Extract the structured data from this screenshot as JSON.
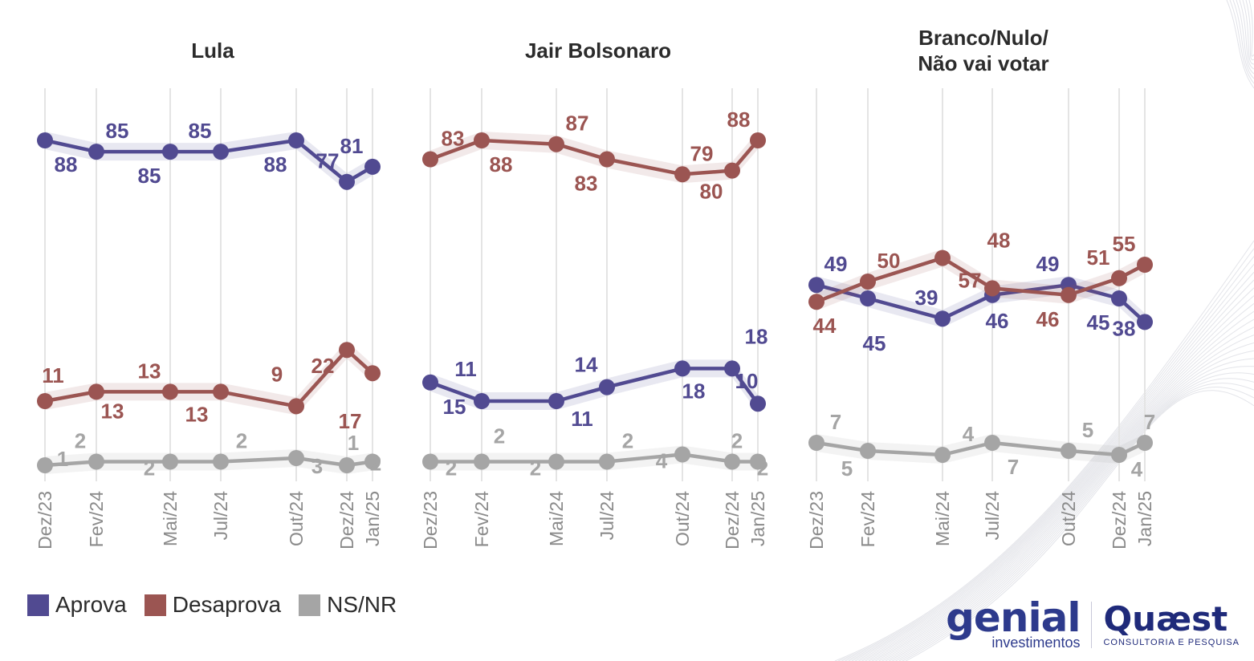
{
  "colors": {
    "aprova": "#514a91",
    "desaprova": "#9b5552",
    "nsnr": "#a5a5a5"
  },
  "legend": [
    {
      "key": "aprova",
      "label": "Aprova"
    },
    {
      "key": "desaprova",
      "label": "Desaprova"
    },
    {
      "key": "nsnr",
      "label": "NS/NR"
    }
  ],
  "logos": {
    "genial": "genial",
    "genial_sub": "investimentos",
    "quaest": "Quæst",
    "quaest_sub": "CONSULTORIA E PESQUISA"
  },
  "chart_data": [
    {
      "type": "line",
      "title": "Lula",
      "categories": [
        "Dez/23",
        "Fev/24",
        "Mai/24",
        "Jul/24",
        "Out/24",
        "Dez/24",
        "Jan/25"
      ],
      "series": [
        {
          "name": "Aprova",
          "key": "aprova",
          "values": [
            88,
            85,
            85,
            85,
            88,
            77,
            81
          ]
        },
        {
          "name": "Desaprova",
          "key": "desaprova",
          "values": [
            11,
            13,
            13,
            13,
            9,
            22,
            17
          ]
        },
        {
          "name": "NS/NR",
          "key": "nsnr",
          "values": [
            1,
            2,
            2,
            2,
            3,
            1,
            2
          ]
        }
      ]
    },
    {
      "type": "line",
      "title": "Jair Bolsonaro",
      "categories": [
        "Dez/23",
        "Fev/24",
        "Mai/24",
        "Jul/24",
        "Out/24",
        "Dez/24",
        "Jan/25"
      ],
      "series": [
        {
          "name": "Aprova",
          "key": "aprova",
          "values": [
            15,
            11,
            11,
            14,
            18,
            18,
            10
          ]
        },
        {
          "name": "Desaprova",
          "key": "desaprova",
          "values": [
            83,
            88,
            87,
            83,
            79,
            80,
            88
          ]
        },
        {
          "name": "NS/NR",
          "key": "nsnr",
          "values": [
            2,
            2,
            2,
            2,
            4,
            2,
            2
          ]
        }
      ]
    },
    {
      "type": "line",
      "title": "Branco/Nulo/ Não vai votar",
      "title_lines": [
        "Branco/Nulo/",
        "Não vai votar"
      ],
      "categories": [
        "Dez/23",
        "Fev/24",
        "Mai/24",
        "Jul/24",
        "Out/24",
        "Dez/24",
        "Jan/25"
      ],
      "series": [
        {
          "name": "Aprova",
          "key": "aprova",
          "values": [
            49,
            45,
            39,
            46,
            49,
            45,
            38
          ]
        },
        {
          "name": "Desaprova",
          "key": "desaprova",
          "values": [
            44,
            50,
            57,
            48,
            46,
            51,
            55
          ]
        },
        {
          "name": "NS/NR",
          "key": "nsnr",
          "values": [
            7,
            5,
            4,
            7,
            5,
            4,
            7
          ]
        }
      ]
    }
  ]
}
